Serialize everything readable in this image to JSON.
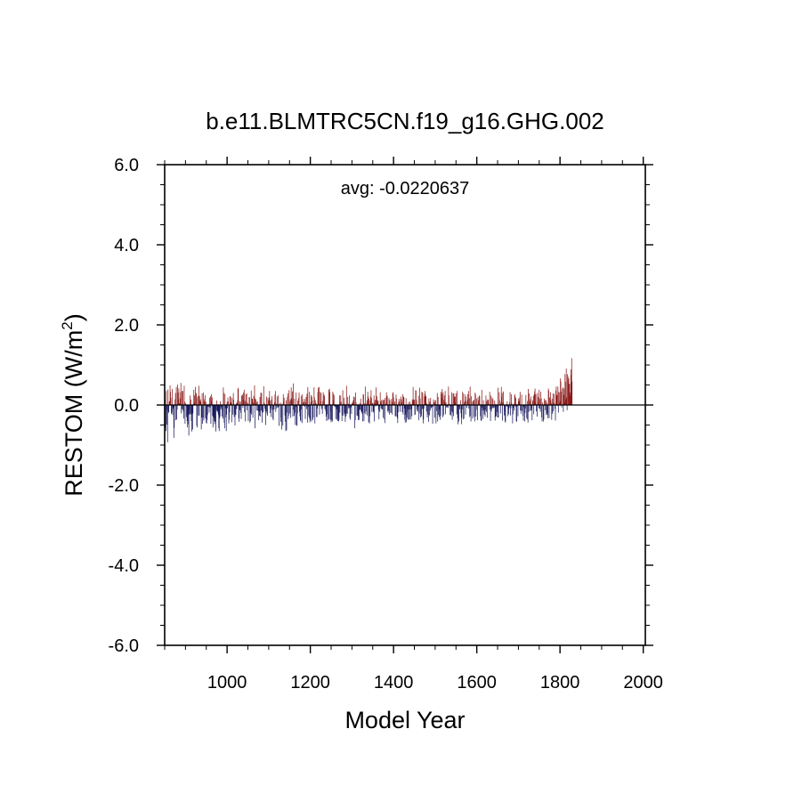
{
  "chart_data": {
    "type": "bar",
    "title": "b.e11.BLMTRC5CN.f19_g16.GHG.002",
    "xlabel": "Model Year",
    "ylabel_main": "RESTOM (W/m",
    "ylabel_sup": "2",
    "ylabel_close": ")",
    "annotation": "avg: -0.0220637",
    "xlim": [
      850,
      2005
    ],
    "ylim": [
      -6.0,
      6.0
    ],
    "x_ticks": [
      1000,
      1200,
      1400,
      1600,
      1800,
      2000
    ],
    "x_tick_labels": [
      "1000",
      "1200",
      "1400",
      "1600",
      "1800",
      "2000"
    ],
    "y_ticks": [
      -6,
      -4,
      -2,
      0,
      2,
      4,
      6
    ],
    "y_tick_labels": [
      "-6.0",
      "-4.0",
      "-2.0",
      "0.0",
      "2.0",
      "4.0",
      "6.0"
    ],
    "x_minor_step": 50,
    "y_minor_step": 0.5,
    "colors": {
      "positive": "#8b1a1a",
      "negative": "#1a1a5e",
      "axis": "#000000"
    },
    "series": [
      {
        "x_start": 850,
        "x_step": 1,
        "values": [
          0.18,
          0.12,
          -0.57,
          -0.65,
          0.35,
          -0.49,
          -0.13,
          -0.93,
          0.39,
          -0.2,
          -0.17,
          0.09,
          0.1,
          0.49,
          0.33,
          0.18,
          -0.22,
          -0.18,
          0.4,
          -0.25,
          -0.1,
          -0.06,
          -0.82,
          -0.57,
          -0.03,
          0.14,
          0.3,
          -0.38,
          0.45,
          -0.36,
          -0.12,
          0.51,
          0.31,
          0.14,
          0.41,
          0.04,
          0.04,
          0.17,
          0.32,
          0.55,
          -0.21,
          -0.1,
          0.35,
          -0.12,
          0.35,
          -0.17,
          -0.34,
          0.48,
          0.09,
          -0.47,
          0.05,
          -0.02,
          -0.3,
          -0.03,
          -0.4,
          -0.56,
          -0.48,
          -0.24,
          -0.76,
          -0.12,
          -0.24,
          0.24,
          -0.22,
          0.14,
          -0.4,
          -0.66,
          -0.24,
          -0.61,
          -0.21,
          0.03,
          0.38,
          0.06,
          0.24,
          0.0,
          0.45,
          0.31,
          0.28,
          -0.51,
          -0.56,
          0.19,
          0.23,
          -0.26,
          0.48,
          -0.27,
          0.22,
          0.11,
          0.14,
          0.08,
          -0.61,
          -0.31,
          0.29,
          -0.47,
          -0.32,
          0.31,
          -0.39,
          0.1,
          0.15,
          0.24,
          -0.33,
          0.08,
          -0.45,
          -0.46,
          -0.37,
          -0.25,
          -0.04,
          0.03,
          -0.05,
          -0.19,
          0.18,
          -0.06,
          0.22,
          -0.47,
          0.27,
          0.1,
          0.19,
          -0.27,
          -0.56,
          -0.28,
          -0.32,
          -0.4,
          -0.48,
          -0.41,
          -0.42,
          -0.66,
          -0.13,
          0.11,
          -0.16,
          -0.14,
          -0.19,
          -0.25,
          -0.58,
          -0.65,
          -0.34,
          -0.29,
          0.09,
          -0.11,
          -0.06,
          -0.03,
          -0.29,
          -0.15,
          -0.34,
          0.44,
          0.3,
          -0.44,
          -0.58,
          0.28,
          -0.08,
          -0.31,
          -0.65,
          -0.24,
          0.08,
          -0.08,
          0.19,
          0.09,
          -0.46,
          -0.37,
          -0.18,
          0.22,
          0.21,
          0.07,
          0.04,
          -0.43,
          0.18,
          0.01,
          -0.24,
          0.3,
          0.13,
          -0.3,
          -0.2,
          -0.51,
          -0.24,
          -0.25,
          0.05,
          -0.1,
          0.04,
          0.11,
          0.4,
          0.43,
          -0.33,
          -0.42,
          0.1,
          -0.13,
          0.08,
          -0.2,
          -0.35,
          0.23,
          0.24,
          0.26,
          -0.07,
          0.31,
          0.14,
          0.38,
          -0.18,
          0.1,
          -0.41,
          0.27,
          -0.02,
          0.29,
          -0.13,
          0.06,
          0.03,
          -0.4,
          -0.02,
          0.2,
          0.19,
          -0.44,
          -0.4,
          -0.2,
          0.36,
          -0.24,
          0.16,
          0.15,
          -0.32,
          0.06,
          0.23,
          0.04,
          0.49,
          -0.58,
          0.16,
          0.14,
          0.04,
          -0.14,
          0.08,
          0.09,
          -0.14,
          -0.15,
          -0.38,
          -0.17,
          -0.27,
          0.2,
          -0.29,
          0.31,
          -0.14,
          0.3,
          -0.44,
          -0.19,
          -0.01,
          -0.18,
          0.47,
          0.06,
          0.03,
          -0.09,
          -0.15,
          -0.5,
          -0.17,
          0.21,
          -0.22,
          -0.27,
          0.18,
          0.12,
          -0.01,
          0.19,
          0.35,
          -0.2,
          0.11,
          -0.09,
          -0.3,
          0.14,
          0.22,
          -0.13,
          -0.34,
          -0.38,
          -0.03,
          -0.11,
          0.07,
          0.26,
          0.35,
          -0.17,
          -0.09,
          0.04,
          0.21,
          -0.06,
          -0.07,
          0.24,
          -0.04,
          -0.52,
          0.03,
          -0.01,
          0.06,
          -0.42,
          -0.31,
          -0.61,
          0.03,
          -0.01,
          -0.51,
          0.27,
          0.08,
          0.18,
          0.01,
          -0.26,
          -0.42,
          -0.65,
          0.12,
          -0.63,
          -0.19,
          0.2,
          0.29,
          -0.35,
          -0.27,
          0.37,
          -0.21,
          0.09,
          0.14,
          -0.32,
          0.44,
          0.17,
          0.11,
          0.34,
          -0.29,
          0.54,
          -0.12,
          -0.27,
          0.16,
          -0.19,
          -0.5,
          -0.05,
          0.31,
          -0.5,
          -0.52,
          -0.21,
          0.11,
          -0.01,
          0.18,
          0.31,
          -0.17,
          -0.28,
          -0.38,
          -0.41,
          0.23,
          -0.11,
          -0.45,
          0.27,
          0.15,
          0.06,
          -0.02,
          0.08,
          -0.04,
          0.15,
          -0.35,
          0.06,
          0.2,
          -0.1,
          0.28,
          -0.44,
          0.45,
          -0.04,
          -0.26,
          -0.32,
          0.33,
          -0.43,
          -0.38,
          0.07,
          0.25,
          -0.41,
          0.21,
          0.11,
          -0.37,
          -0.31,
          0.03,
          0.44,
          0.19,
          -0.46,
          0.12,
          0.04,
          0.04,
          -0.3,
          -0.3,
          -0.09,
          0.32,
          0.43,
          0.06,
          0.45,
          -0.24,
          -0.03,
          0.33,
          0.09,
          0.3,
          -0.1,
          -0.03,
          -0.22,
          0.1,
          0.32,
          0.03,
          0.26,
          0.22,
          -0.1,
          0.0,
          -0.15,
          -0.29,
          -0.4,
          -0.23,
          -0.04,
          -0.38,
          -0.01,
          0.38,
          -0.35,
          0.41,
          0.32,
          -0.37,
          -0.16,
          -0.43,
          -0.38,
          0.01,
          -0.41,
          0.33,
          0.29,
          0.12,
          0.25,
          -0.03,
          -0.05,
          0.02,
          -0.35,
          -0.03,
          -0.1,
          -0.37,
          -0.12,
          -0.4,
          -0.3,
          -0.41,
          -0.37,
          0.24,
          -0.19,
          0.06,
          0.24,
          0.09,
          0.01,
          -0.4,
          -0.26,
          0.37,
          0.03,
          -0.27,
          0.18,
          -0.21,
          0.03,
          -0.42,
          -0.3,
          -0.27,
          0.48,
          -0.21,
          -0.22,
          0.2,
          0.04,
          -0.08,
          -0.08,
          0.24,
          -0.32,
          -0.37,
          -0.04,
          -0.06,
          -0.22,
          0.03,
          0.06,
          0.04,
          0.11,
          0.21,
          0.12,
          0.2,
          -0.58,
          -0.38,
          0.31,
          0.07,
          -0.01,
          -0.27,
          -0.26,
          0.02,
          -0.38,
          -0.29,
          -0.37,
          -0.13,
          0.05,
          -0.11,
          0.16,
          -0.15,
          -0.19,
          -0.16,
          -0.23,
          -0.41,
          0.27,
          0.26,
          -0.4,
          -0.2,
          0.05,
          0.46,
          -0.23,
          -0.16,
          0.04,
          0.12,
          -0.26,
          0.33,
          0.21,
          -0.43,
          0.16,
          -0.46,
          -0.28,
          0.11,
          0.21,
          0.37,
          0.17,
          -0.18,
          0.04,
          0.05,
          -0.15,
          -0.19,
          0.24,
          -0.41,
          0.06,
          0.13,
          -0.04,
          0.44,
          0.13,
          0.22,
          0.12,
          0.07,
          0.11,
          -0.12,
          -0.36,
          -0.03,
          -0.17,
          0.32,
          0.08,
          -0.08,
          0.12,
          -0.11,
          -0.11,
          0.14,
          -0.32,
          0.11,
          0.13,
          -0.36,
          -0.45,
          0.18,
          0.04,
          0.01,
          0.32,
          0.22,
          0.23,
          -0.15,
          -0.19,
          -0.14,
          0.17,
          -0.24,
          0.12,
          -0.01,
          -0.2,
          -0.19,
          0.15,
          0.07,
          -0.24,
          0.29,
          0.32,
          0.19,
          0.01,
          0.03,
          0.09,
          -0.28,
          -0.28,
          0.26,
          0.16,
          -0.29,
          -0.33,
          -0.45,
          -0.18,
          0.06,
          0.15,
          0.09,
          -0.04,
          -0.17,
          0.15,
          0.21,
          0.14,
          0.07,
          -0.18,
          0.27,
          -0.24,
          0.21,
          0.19,
          -0.09,
          -0.37,
          -0.44,
          -0.24,
          0.17,
          -0.43,
          -0.18,
          -0.31,
          -0.36,
          -0.11,
          0.07,
          -0.37,
          -0.35,
          0.09,
          -0.11,
          0.02,
          -0.36,
          -0.1,
          -0.28,
          0.14,
          0.08,
          0.45,
          0.13,
          0.12,
          0.14,
          -0.25,
          -0.24,
          0.37,
          0.36,
          0.12,
          -0.11,
          -0.16,
          -0.16,
          -0.05,
          0.23,
          -0.38,
          -0.21,
          0.43,
          0.16,
          -0.31,
          -0.22,
          -0.28,
          0.33,
          -0.1,
          0.31,
          -0.46,
          -0.36,
          -0.09,
          0.21,
          0.28,
          0.35,
          0.21,
          0.23,
          -0.16,
          0.04,
          -0.31,
          0.0,
          -0.24,
          -0.42,
          0.16,
          -0.26,
          0.08,
          -0.14,
          0.18,
          -0.06,
          -0.08,
          0.01,
          -0.04,
          -0.47,
          -0.05,
          0.14,
          0.07,
          0.07,
          -0.32,
          0.12,
          0.12,
          -0.46,
          0.02,
          -0.15,
          0.3,
          -0.41,
          0.2,
          -0.25,
          -0.11,
          -0.3,
          -0.14,
          -0.37,
          -0.27,
          0.33,
          0.27,
          0.18,
          0.4,
          -0.31,
          0.31,
          -0.26,
          0.13,
          0.24,
          0.08,
          0.35,
          -0.23,
          0.07,
          -0.06,
          -0.04,
          -0.02,
          -0.07,
          -0.06,
          0.46,
          0.24,
          0.02,
          0.02,
          -0.25,
          -0.04,
          -0.26,
          -0.16,
          0.32,
          -0.37,
          -0.19,
          0.29,
          -0.28,
          0.29,
          0.2,
          0.21,
          0.07,
          0.21,
          0.29,
          -0.01,
          -0.23,
          0.35,
          -0.33,
          -0.48,
          -0.04,
          -0.41,
          -0.11,
          -0.1,
          0.0,
          0.12,
          -0.21,
          -0.48,
          -0.32,
          -0.11,
          0.33,
          0.29,
          -0.36,
          -0.34,
          0.07,
          0.27,
          0.1,
          -0.24,
          0.21,
          -0.01,
          -0.07,
          0.1,
          0.27,
          0.14,
          0.35,
          -0.09,
          0.17,
          -0.3,
          0.46,
          -0.27,
          -0.41,
          0.22,
          0.08,
          0.0,
          -0.34,
          0.11,
          0.07,
          0.13,
          -0.3,
          -0.41,
          0.31,
          0.27,
          -0.29,
          -0.12,
          0.16,
          0.01,
          -0.38,
          0.2,
          0.12,
          0.03,
          0.24,
          0.22,
          0.02,
          -0.28,
          -0.38,
          -0.4,
          0.38,
          -0.07,
          -0.14,
          -0.35,
          0.12,
          -0.13,
          -0.24,
          -0.18,
          -0.29,
          -0.12,
          0.24,
          -0.17,
          0.1,
          -0.32,
          0.14,
          0.06,
          0.13,
          -0.02,
          -0.01,
          0.33,
          -0.11,
          -0.4,
          0.24,
          -0.16,
          -0.1,
          0.19,
          -0.07,
          0.15,
          -0.08,
          -0.01,
          -0.06,
          0.11,
          -0.39,
          -0.3,
          0.03,
          -0.28,
          -0.18,
          -0.06,
          -0.31,
          0.43,
          -0.31,
          -0.01,
          0.32,
          0.12,
          0.02,
          -0.21,
          0.06,
          0.45,
          0.2,
          0.3,
          -0.39,
          0.07,
          0.34,
          0.0,
          -0.26,
          -0.16,
          -0.41,
          -0.44,
          0.0,
          0.02,
          -0.04,
          0.09,
          -0.03,
          -0.28,
          -0.1,
          -0.23,
          -0.07,
          0.07,
          0.32,
          -0.26,
          -0.08,
          0.27,
          0.05,
          0.01,
          -0.46,
          -0.23,
          -0.07,
          0.03,
          -0.14,
          0.27,
          0.23,
          -0.04,
          0.18,
          -0.4,
          -0.42,
          0.03,
          -0.02,
          -0.28,
          0.16,
          0.08,
          0.1,
          0.19,
          0.33,
          -0.13,
          -0.22,
          -0.15,
          0.26,
          0.0,
          -0.15,
          -0.27,
          -0.39,
          0.01,
          -0.05,
          -0.41,
          -0.2,
          -0.09,
          0.25,
          0.01,
          -0.32,
          -0.36,
          0.1,
          -0.44,
          0.4,
          -0.17,
          0.29,
          0.15,
          0.1,
          -0.15,
          0.21,
          -0.13,
          -0.06,
          -0.38,
          0.12,
          0.08,
          0.23,
          -0.23,
          0.27,
          0.34,
          0.41,
          0.07,
          0.27,
          -0.16,
          0.02,
          -0.29,
          0.3,
          0.07,
          0.2,
          -0.08,
          0.38,
          -0.1,
          0.15,
          -0.17,
          0.33,
          0.17,
          -0.31,
          -0.41,
          0.06,
          -0.01,
          -0.41,
          -0.36,
          0.16,
          -0.02,
          0.11,
          -0.13,
          0.13,
          -0.25,
          0.06,
          -0.21,
          -0.25,
          -0.33,
          0.41,
          0.36,
          -0.33,
          0.19,
          0.0,
          0.32,
          0.12,
          0.04,
          -0.37,
          0.16,
          -0.22,
          0.29,
          -0.16,
          0.06,
          0.28,
          0.03,
          -0.1,
          -0.39,
          0.36,
          0.46,
          0.25,
          0.25,
          -0.02,
          0.46,
          -0.19,
          0.33,
          0.31,
          0.04,
          0.1,
          0.66,
          0.59,
          0.33,
          -0.06,
          0.0,
          0.41,
          0.44,
          -0.17,
          0.25,
          0.41,
          0.07,
          0.77,
          0.14,
          0.58,
          0.91,
          0.19,
          -0.13,
          0.77,
          0.72,
          0.61,
          0.67,
          0.51,
          0.53,
          0.23,
          0.31,
          0.89,
          0.75,
          1.17,
          0.58
        ]
      }
    ]
  }
}
